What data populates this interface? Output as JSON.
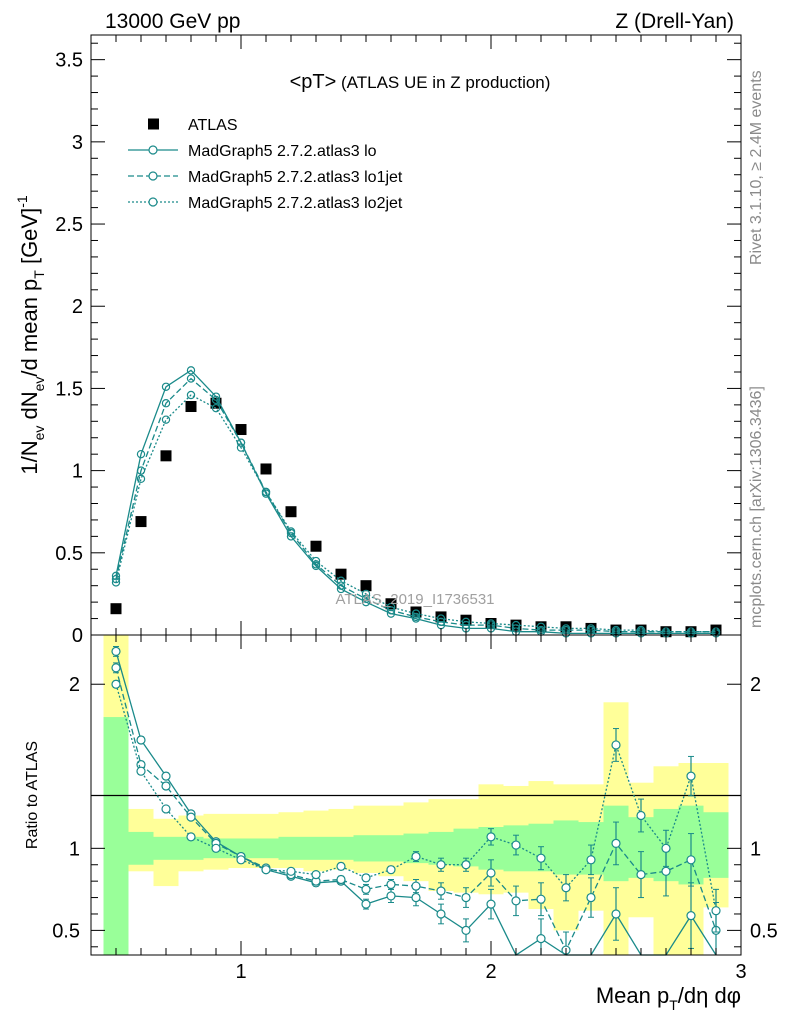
{
  "header": {
    "left": "13000 GeV pp",
    "right": "Z (Drell-Yan)"
  },
  "plot_title": {
    "main": "<pT>",
    "sub": " (ATLAS UE in Z production)"
  },
  "side_labels": {
    "rivet": "Rivet 3.1.10, ≥ 2.4M events",
    "mcplots": "mcplots.cern.ch [arXiv:1306.3436]"
  },
  "watermark": "ATLAS_2019_I1736531",
  "axis_titles": {
    "main_y": "1/N_ev dN_ev/d mean p_T [GeV]^-1",
    "ratio_y": "Ratio to ATLAS",
    "x": "Mean p_T/dη dφ"
  },
  "colors": {
    "data": "#000000",
    "mc": "#1a8a8a",
    "band_inner": "#99ff99",
    "band_outer": "#ffff99"
  },
  "chart_data": [
    {
      "type": "scatter",
      "panel": "main",
      "xlim": [
        0.4,
        3.0
      ],
      "ylim": [
        0,
        3.65
      ],
      "xticks": [
        1,
        2,
        3
      ],
      "yticks": [
        0,
        0.5,
        1,
        1.5,
        2,
        2.5,
        3,
        3.5
      ],
      "x": [
        0.5,
        0.6,
        0.7,
        0.8,
        0.9,
        1.0,
        1.1,
        1.2,
        1.3,
        1.4,
        1.5,
        1.6,
        1.7,
        1.8,
        1.9,
        2.0,
        2.1,
        2.2,
        2.3,
        2.4,
        2.5,
        2.6,
        2.7,
        2.8,
        2.9
      ],
      "series": [
        {
          "name": "ATLAS",
          "style": "data",
          "values": [
            0.16,
            0.69,
            1.09,
            1.39,
            1.41,
            1.25,
            1.01,
            0.75,
            0.54,
            0.37,
            0.3,
            0.19,
            0.14,
            0.11,
            0.09,
            0.07,
            0.06,
            0.05,
            0.05,
            0.04,
            0.03,
            0.03,
            0.02,
            0.02,
            0.03
          ]
        },
        {
          "name": "MadGraph5 2.7.2.atlas3 lo",
          "style": "solid",
          "values": [
            0.36,
            1.1,
            1.51,
            1.61,
            1.45,
            1.17,
            0.86,
            0.6,
            0.42,
            0.28,
            0.2,
            0.13,
            0.1,
            0.06,
            0.04,
            0.04,
            0.02,
            0.02,
            0.01,
            0.01,
            0.01,
            0.01,
            0.01,
            0.01,
            0.01
          ]
        },
        {
          "name": "MadGraph5 2.7.2.atlas3 lo1jet",
          "style": "dashed",
          "values": [
            0.34,
            1.0,
            1.41,
            1.56,
            1.43,
            1.17,
            0.87,
            0.62,
            0.43,
            0.3,
            0.22,
            0.15,
            0.11,
            0.08,
            0.06,
            0.06,
            0.04,
            0.03,
            0.03,
            0.03,
            0.02,
            0.02,
            0.02,
            0.02,
            0.02
          ]
        },
        {
          "name": "MadGraph5 2.7.2.atlas3 lo2jet",
          "style": "dotted",
          "values": [
            0.32,
            0.95,
            1.31,
            1.46,
            1.38,
            1.14,
            0.87,
            0.63,
            0.45,
            0.33,
            0.25,
            0.17,
            0.13,
            0.1,
            0.08,
            0.07,
            0.06,
            0.05,
            0.04,
            0.04,
            0.03,
            0.03,
            0.02,
            0.02,
            0.02
          ]
        }
      ]
    },
    {
      "type": "line",
      "panel": "ratio",
      "xlabel": "Mean p_T/dη dφ",
      "ylabel": "Ratio to ATLAS",
      "xlim": [
        0.4,
        3.0
      ],
      "ylim": [
        0.35,
        2.3
      ],
      "xticks": [
        1,
        2,
        3
      ],
      "yticks": [
        0.5,
        1,
        2
      ],
      "x": [
        0.5,
        0.6,
        0.7,
        0.8,
        0.9,
        1.0,
        1.1,
        1.2,
        1.3,
        1.4,
        1.5,
        1.6,
        1.7,
        1.8,
        1.9,
        2.0,
        2.1,
        2.2,
        2.3,
        2.4,
        2.5,
        2.6,
        2.7,
        2.8,
        2.9
      ],
      "bins": [
        0.45,
        0.55,
        0.65,
        0.75,
        0.85,
        0.95,
        1.05,
        1.15,
        1.25,
        1.35,
        1.45,
        1.55,
        1.65,
        1.75,
        1.85,
        1.95,
        2.05,
        2.15,
        2.25,
        2.35,
        2.45,
        2.55,
        2.65,
        2.75,
        2.85,
        2.95
      ],
      "band_inner": {
        "lo": [
          0.35,
          0.9,
          0.93,
          0.93,
          0.94,
          0.94,
          0.94,
          0.93,
          0.93,
          0.93,
          0.92,
          0.92,
          0.91,
          0.9,
          0.89,
          0.87,
          0.86,
          0.86,
          0.84,
          0.84,
          0.8,
          0.82,
          0.8,
          0.78,
          0.82
        ],
        "hi": [
          1.8,
          1.1,
          1.07,
          1.07,
          1.06,
          1.06,
          1.06,
          1.07,
          1.07,
          1.07,
          1.08,
          1.08,
          1.09,
          1.1,
          1.12,
          1.13,
          1.14,
          1.15,
          1.17,
          1.16,
          1.26,
          1.19,
          1.24,
          1.26,
          1.22
        ]
      },
      "band_outer": {
        "lo": [
          0.35,
          0.86,
          0.77,
          0.86,
          0.87,
          0.88,
          0.88,
          0.88,
          0.86,
          0.87,
          0.85,
          0.83,
          0.8,
          0.74,
          0.73,
          0.72,
          0.73,
          0.63,
          0.5,
          0.62,
          0.35,
          0.58,
          0.35,
          0.35,
          0.64
        ],
        "hi": [
          2.3,
          1.24,
          1.18,
          1.2,
          1.21,
          1.21,
          1.21,
          1.22,
          1.23,
          1.24,
          1.26,
          1.26,
          1.28,
          1.3,
          1.3,
          1.39,
          1.38,
          1.41,
          1.39,
          1.39,
          1.89,
          1.4,
          1.5,
          1.52,
          1.52
        ]
      },
      "series": [
        {
          "name": "MadGraph5 2.7.2.atlas3 lo",
          "style": "solid",
          "values": [
            2.2,
            1.66,
            1.44,
            1.21,
            1.04,
            0.95,
            0.87,
            0.83,
            0.79,
            0.8,
            0.66,
            0.71,
            0.7,
            0.6,
            0.5,
            0.66,
            0.3,
            0.45,
            0.3,
            0.3,
            0.6,
            0.3,
            0.3,
            0.59,
            0.3
          ],
          "err": [
            0.03,
            0.02,
            0.02,
            0.01,
            0.01,
            0.01,
            0.01,
            0.01,
            0.02,
            0.02,
            0.03,
            0.04,
            0.05,
            0.06,
            0.07,
            0.09,
            0.1,
            0.12,
            0.13,
            0.15,
            0.16,
            0.17,
            0.18,
            0.2,
            0.2
          ]
        },
        {
          "name": "MadGraph5 2.7.2.atlas3 lo1jet",
          "style": "dashed",
          "values": [
            2.1,
            1.51,
            1.38,
            1.19,
            1.03,
            0.95,
            0.88,
            0.84,
            0.8,
            0.81,
            0.75,
            0.78,
            0.77,
            0.74,
            0.7,
            0.85,
            0.68,
            0.69,
            0.38,
            0.7,
            1.03,
            0.84,
            0.86,
            0.93,
            0.5
          ],
          "err": [
            0.03,
            0.02,
            0.02,
            0.01,
            0.01,
            0.01,
            0.01,
            0.01,
            0.02,
            0.02,
            0.03,
            0.03,
            0.04,
            0.05,
            0.06,
            0.08,
            0.09,
            0.1,
            0.11,
            0.12,
            0.13,
            0.14,
            0.15,
            0.16,
            0.17
          ]
        },
        {
          "name": "MadGraph5 2.7.2.atlas3 lo2jet",
          "style": "dotted",
          "values": [
            2.0,
            1.47,
            1.24,
            1.07,
            1.0,
            0.93,
            0.87,
            0.86,
            0.84,
            0.89,
            0.82,
            0.87,
            0.95,
            0.9,
            0.9,
            1.07,
            1.02,
            0.94,
            0.76,
            0.93,
            1.63,
            1.2,
            1.0,
            1.44,
            0.62
          ],
          "err": [
            0.02,
            0.02,
            0.01,
            0.01,
            0.01,
            0.01,
            0.01,
            0.01,
            0.01,
            0.02,
            0.02,
            0.02,
            0.03,
            0.04,
            0.04,
            0.05,
            0.06,
            0.07,
            0.08,
            0.09,
            0.1,
            0.1,
            0.11,
            0.12,
            0.13
          ]
        }
      ]
    }
  ]
}
